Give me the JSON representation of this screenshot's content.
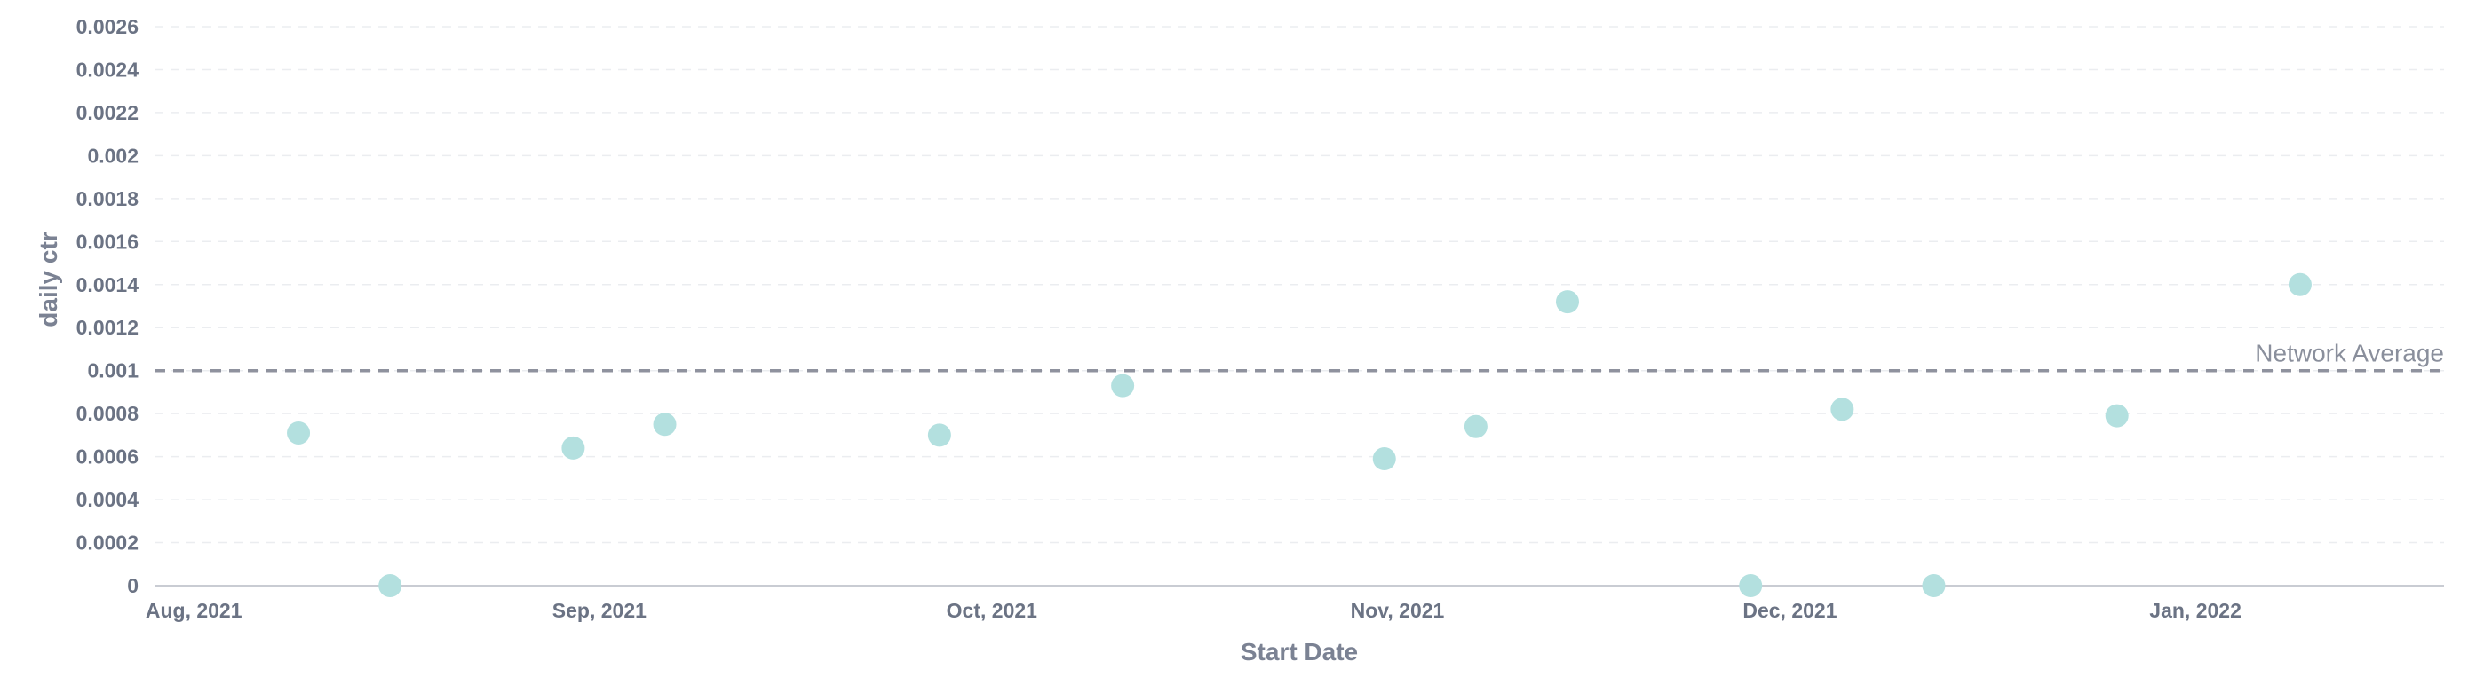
{
  "chart_data": {
    "type": "scatter",
    "xlabel": "Start Date",
    "ylabel": "daily ctr",
    "ylim": [
      0,
      0.0026
    ],
    "yticks": [
      "0",
      "0.0002",
      "0.0004",
      "0.0006",
      "0.0008",
      "0.001",
      "0.0012",
      "0.0014",
      "0.0016",
      "0.0018",
      "0.002",
      "0.0022",
      "0.0024",
      "0.0026"
    ],
    "xlim": [
      "2021-07-29",
      "2022-01-20"
    ],
    "xticks": [
      {
        "date": "2021-08-01",
        "label": "Aug, 2021"
      },
      {
        "date": "2021-09-01",
        "label": "Sep, 2021"
      },
      {
        "date": "2021-10-01",
        "label": "Oct, 2021"
      },
      {
        "date": "2021-11-01",
        "label": "Nov, 2021"
      },
      {
        "date": "2021-12-01",
        "label": "Dec, 2021"
      },
      {
        "date": "2022-01-01",
        "label": "Jan, 2022"
      }
    ],
    "grid": true,
    "point_color": "#b3e0df",
    "reference_line": {
      "y": 0.001,
      "label": "Network Average",
      "color": "#8f929e"
    },
    "points": [
      {
        "x": "2021-08-09",
        "y": 0.00071
      },
      {
        "x": "2021-08-16",
        "y": 0
      },
      {
        "x": "2021-08-30",
        "y": 0.00064
      },
      {
        "x": "2021-09-06",
        "y": 0.00075
      },
      {
        "x": "2021-09-27",
        "y": 0.0007
      },
      {
        "x": "2021-10-11",
        "y": 0.00093
      },
      {
        "x": "2021-10-31",
        "y": 0.00059
      },
      {
        "x": "2021-11-07",
        "y": 0.00074
      },
      {
        "x": "2021-11-14",
        "y": 0.00132
      },
      {
        "x": "2021-11-28",
        "y": 0
      },
      {
        "x": "2021-12-05",
        "y": 0.00082
      },
      {
        "x": "2021-12-12",
        "y": 0
      },
      {
        "x": "2021-12-26",
        "y": 0.00079
      },
      {
        "x": "2022-01-09",
        "y": 0.0014
      }
    ]
  }
}
